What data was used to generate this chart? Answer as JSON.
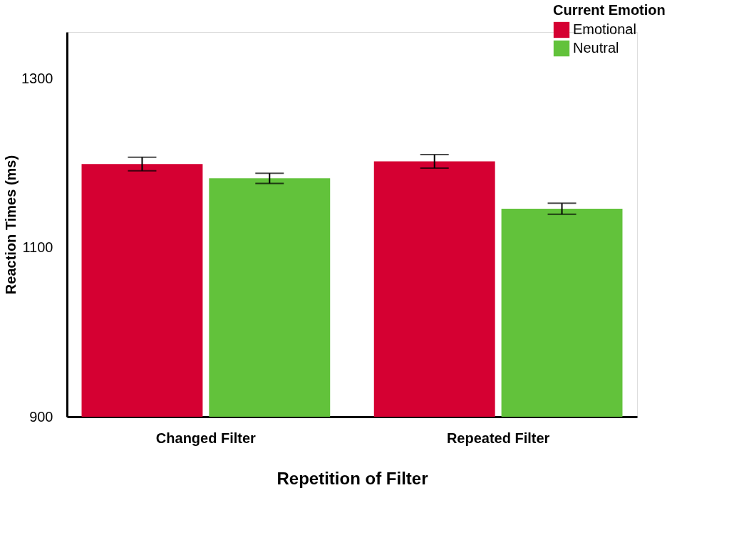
{
  "chart_data": {
    "type": "bar",
    "xlabel": "Repetition of Filter",
    "ylabel": "Reaction Times (ms)",
    "legend_title": "Current Emotion",
    "categories": [
      "Changed Filter",
      "Repeated Filter"
    ],
    "series": [
      {
        "name": "Emotional",
        "color": "#d50032",
        "values": [
          1199,
          1202
        ],
        "errors": [
          8,
          8
        ]
      },
      {
        "name": "Neutral",
        "color": "#62c23b",
        "values": [
          1182,
          1146
        ],
        "errors": [
          6,
          6.5
        ]
      }
    ],
    "ylim": [
      900,
      1355
    ],
    "yticks": [
      900,
      1100,
      1300
    ],
    "grid": false,
    "legend": "top right"
  }
}
